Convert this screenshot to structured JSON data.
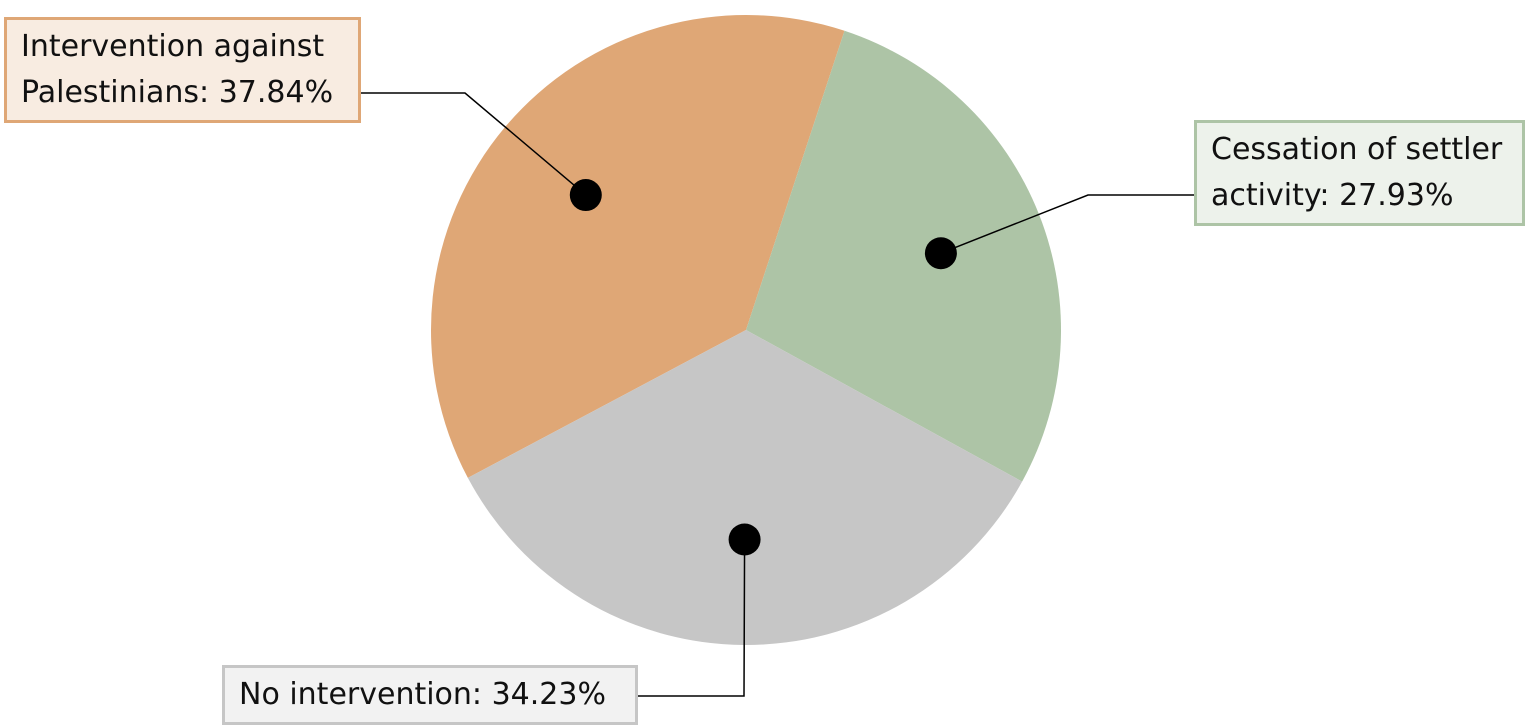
{
  "chart_data": {
    "type": "pie",
    "categories": [
      "Intervention against Palestinians:",
      "Cessation of settler activity:",
      "No intervention:"
    ],
    "values": [
      37.84,
      27.93,
      34.23
    ],
    "value_labels": [
      "37.84%",
      "27.93%",
      "34.23%"
    ],
    "colors": [
      "#dfa776",
      "#adc4a6",
      "#c6c6c6"
    ]
  }
}
